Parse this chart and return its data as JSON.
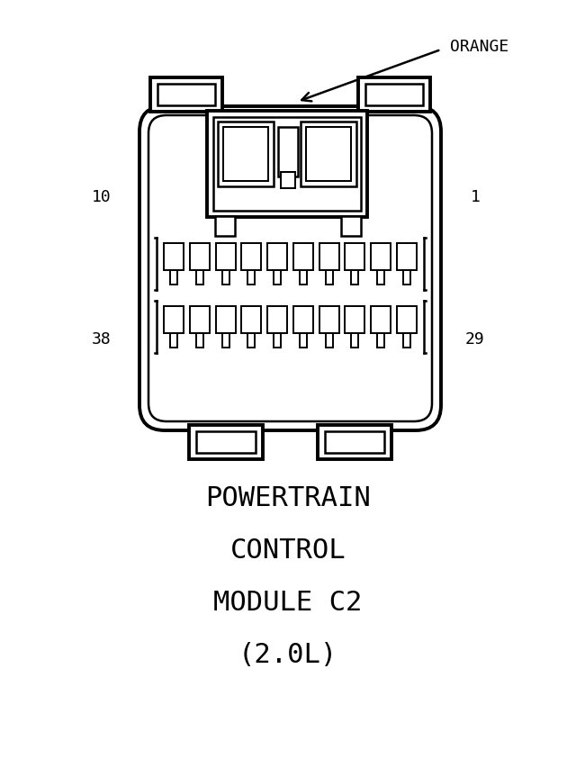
{
  "bg_color": "#ffffff",
  "line_color": "#000000",
  "title_lines": [
    "POWERTRAIN",
    "CONTROL",
    "MODULE C2",
    "(2.0L)"
  ],
  "label_left_top": "10",
  "label_left_bottom": "38",
  "label_right_top": "1",
  "label_right_bottom": "29",
  "orange_label": "ORANGE",
  "fig_w": 6.4,
  "fig_h": 8.43,
  "dpi": 100
}
